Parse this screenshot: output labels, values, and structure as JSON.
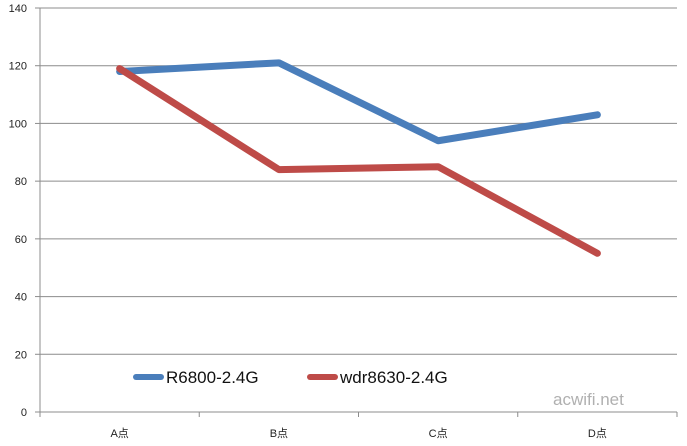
{
  "chart_data": {
    "type": "line",
    "categories": [
      "A点",
      "B点",
      "C点",
      "D点"
    ],
    "series": [
      {
        "name": "R6800-2.4G",
        "values": [
          118,
          121,
          94,
          103
        ],
        "color": "#4a7ebb"
      },
      {
        "name": "wdr8630-2.4G",
        "values": [
          119,
          84,
          85,
          55
        ],
        "color": "#be4b48"
      }
    ],
    "ylim": [
      0,
      140
    ],
    "yticks": [
      0,
      20,
      40,
      60,
      80,
      100,
      120,
      140
    ],
    "grid": true,
    "legend_position": "bottom-left",
    "title": "",
    "xlabel": "",
    "ylabel": ""
  },
  "watermark": "acwifi.net",
  "colors": {
    "gridline": "#8c8c8c",
    "axis": "#8c8c8c",
    "background": "#ffffff"
  }
}
